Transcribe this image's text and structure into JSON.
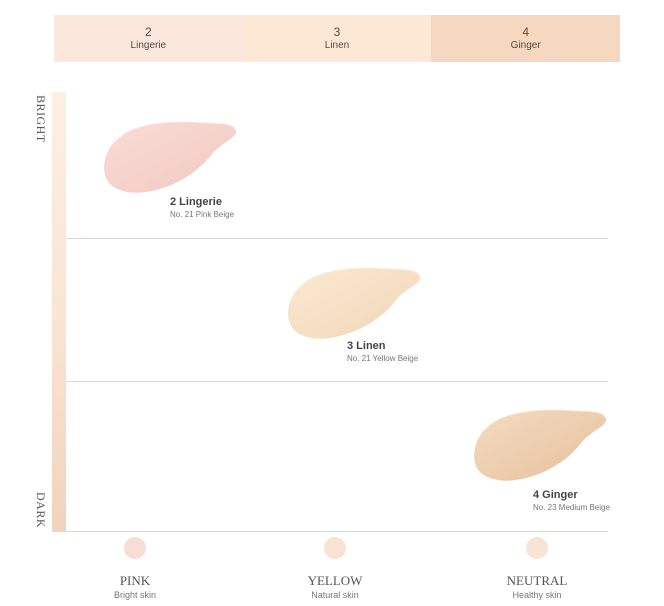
{
  "shades": [
    {
      "number": "2",
      "name": "Lingerie"
    },
    {
      "number": "3",
      "name": "Linen"
    },
    {
      "number": "4",
      "name": "Ginger"
    }
  ],
  "axis": {
    "top_label": "BRIGHT",
    "bottom_label": "DARK"
  },
  "products": [
    {
      "title": "2 Lingerie",
      "subtitle": "No. 21 Pink Beige",
      "color": "#f8d8d2"
    },
    {
      "title": "3 Linen",
      "subtitle": "No. 21 Yellow Beige",
      "color": "#f9e3c8"
    },
    {
      "title": "4 Ginger",
      "subtitle": "No. 23 Medium Beige",
      "color": "#efcfae"
    }
  ],
  "tones": [
    {
      "name": "PINK",
      "desc": "Bright skin",
      "color": "#f6ddd6"
    },
    {
      "name": "YELLOW",
      "desc": "Natural skin",
      "color": "#f8e3d3"
    },
    {
      "name": "NEUTRAL",
      "desc": "Healthy skin",
      "color": "#f8e4d4"
    }
  ]
}
